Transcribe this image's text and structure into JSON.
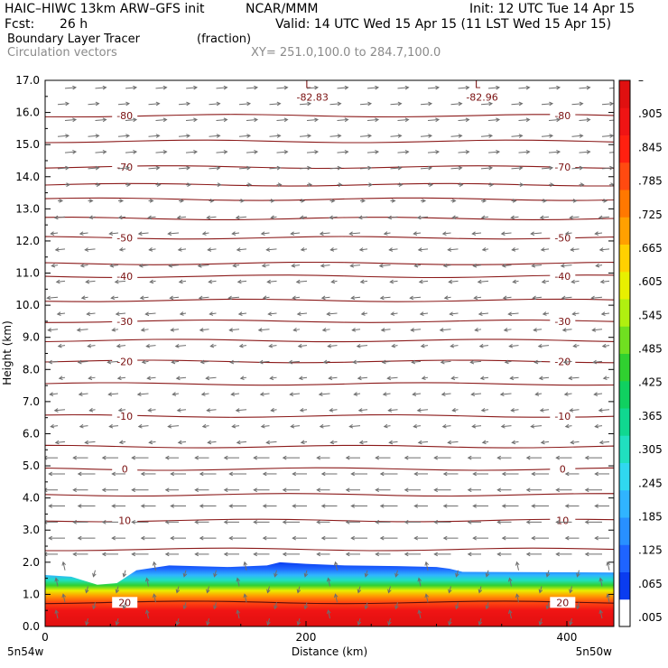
{
  "header": {
    "model": "HAIC–HIWC 13km ARW–GFS init",
    "org": "NCAR/MMM",
    "init": "Init: 12 UTC Tue 14 Apr 15",
    "fcst_label": "Fcst:",
    "fcst_value": "26 h",
    "valid": "Valid: 14 UTC Wed 15 Apr 15 (11 LST Wed 15 Apr 15)",
    "field": "Boundary Layer Tracer",
    "units": "(fraction)",
    "vectors": "Circulation vectors",
    "xy": "XY= 251.0,100.0 to 284.7,100.0"
  },
  "chart_data": {
    "type": "heatmap",
    "xlabel": "Distance (km)",
    "ylabel": "Height (km)",
    "xlim": [
      0,
      436
    ],
    "ylim": [
      0,
      17
    ],
    "x_ticks": [
      0,
      200,
      400
    ],
    "y_ticks": [
      "0.0",
      "1.0",
      "2.0",
      "3.0",
      "4.0",
      "5.0",
      "6.0",
      "7.0",
      "8.0",
      "9.0",
      "10.0",
      "11.0",
      "12.0",
      "13.0",
      "14.0",
      "15.0",
      "16.0",
      "17.0"
    ],
    "x_end_labels": {
      "left": "5n54w",
      "right": "5n50w"
    },
    "colorbar_labels": [
      ".005",
      ".065",
      ".125",
      ".185",
      ".245",
      ".305",
      ".365",
      ".425",
      ".485",
      ".545",
      ".605",
      ".665",
      ".725",
      ".785",
      ".845",
      ".905",
      "–"
    ],
    "colorbar_colors": [
      "#ffffff",
      "#0a3cf0",
      "#1e64ff",
      "#2890ff",
      "#30b4ff",
      "#30d8f0",
      "#20e0c0",
      "#10d890",
      "#10d060",
      "#30d030",
      "#70e020",
      "#b0f010",
      "#e8f000",
      "#ffd000",
      "#ffa000",
      "#ff7800",
      "#ff4a10",
      "#ff2010",
      "#f01414",
      "#e01010"
    ],
    "tracer_top_km": [
      [
        0,
        1.6
      ],
      [
        20,
        1.55
      ],
      [
        40,
        1.3
      ],
      [
        55,
        1.35
      ],
      [
        70,
        1.75
      ],
      [
        95,
        1.9
      ],
      [
        140,
        1.85
      ],
      [
        170,
        1.9
      ],
      [
        180,
        2.0
      ],
      [
        200,
        1.95
      ],
      [
        230,
        1.9
      ],
      [
        270,
        1.88
      ],
      [
        300,
        1.85
      ],
      [
        310,
        1.8
      ],
      [
        320,
        1.7
      ],
      [
        436,
        1.68
      ]
    ],
    "temperature_contours": [
      {
        "value": -80,
        "height_km": 15.9,
        "label": "-80"
      },
      {
        "value": -75,
        "height_km": 15.1,
        "label": ""
      },
      {
        "value": -70,
        "height_km": 14.3,
        "label": "-70"
      },
      {
        "value": -65,
        "height_km": 13.75,
        "label": ""
      },
      {
        "value": -60,
        "height_km": 13.3,
        "label": ""
      },
      {
        "value": -55,
        "height_km": 12.7,
        "label": ""
      },
      {
        "value": -50,
        "height_km": 12.1,
        "label": "-50"
      },
      {
        "value": -45,
        "height_km": 11.3,
        "label": ""
      },
      {
        "value": -40,
        "height_km": 10.9,
        "label": "-40"
      },
      {
        "value": -35,
        "height_km": 10.15,
        "label": ""
      },
      {
        "value": -30,
        "height_km": 9.5,
        "label": "-30"
      },
      {
        "value": -25,
        "height_km": 8.9,
        "label": ""
      },
      {
        "value": -20,
        "height_km": 8.25,
        "label": "-20"
      },
      {
        "value": -15,
        "height_km": 7.55,
        "label": ""
      },
      {
        "value": -10,
        "height_km": 6.55,
        "label": "-10"
      },
      {
        "value": -5,
        "height_km": 5.6,
        "label": ""
      },
      {
        "value": 0,
        "height_km": 4.9,
        "label": "0"
      },
      {
        "value": 5,
        "height_km": 4.1,
        "label": ""
      },
      {
        "value": 10,
        "height_km": 3.3,
        "label": "10"
      },
      {
        "value": 15,
        "height_km": 2.4,
        "label": ""
      },
      {
        "value": 20,
        "height_km": 0.75,
        "label": "20"
      }
    ],
    "lows": [
      {
        "x_km": 205,
        "height_km": 16.7,
        "mark": "L",
        "label": "-82.83"
      },
      {
        "x_km": 335,
        "height_km": 16.7,
        "mark": "L",
        "label": "-82.96"
      }
    ]
  }
}
